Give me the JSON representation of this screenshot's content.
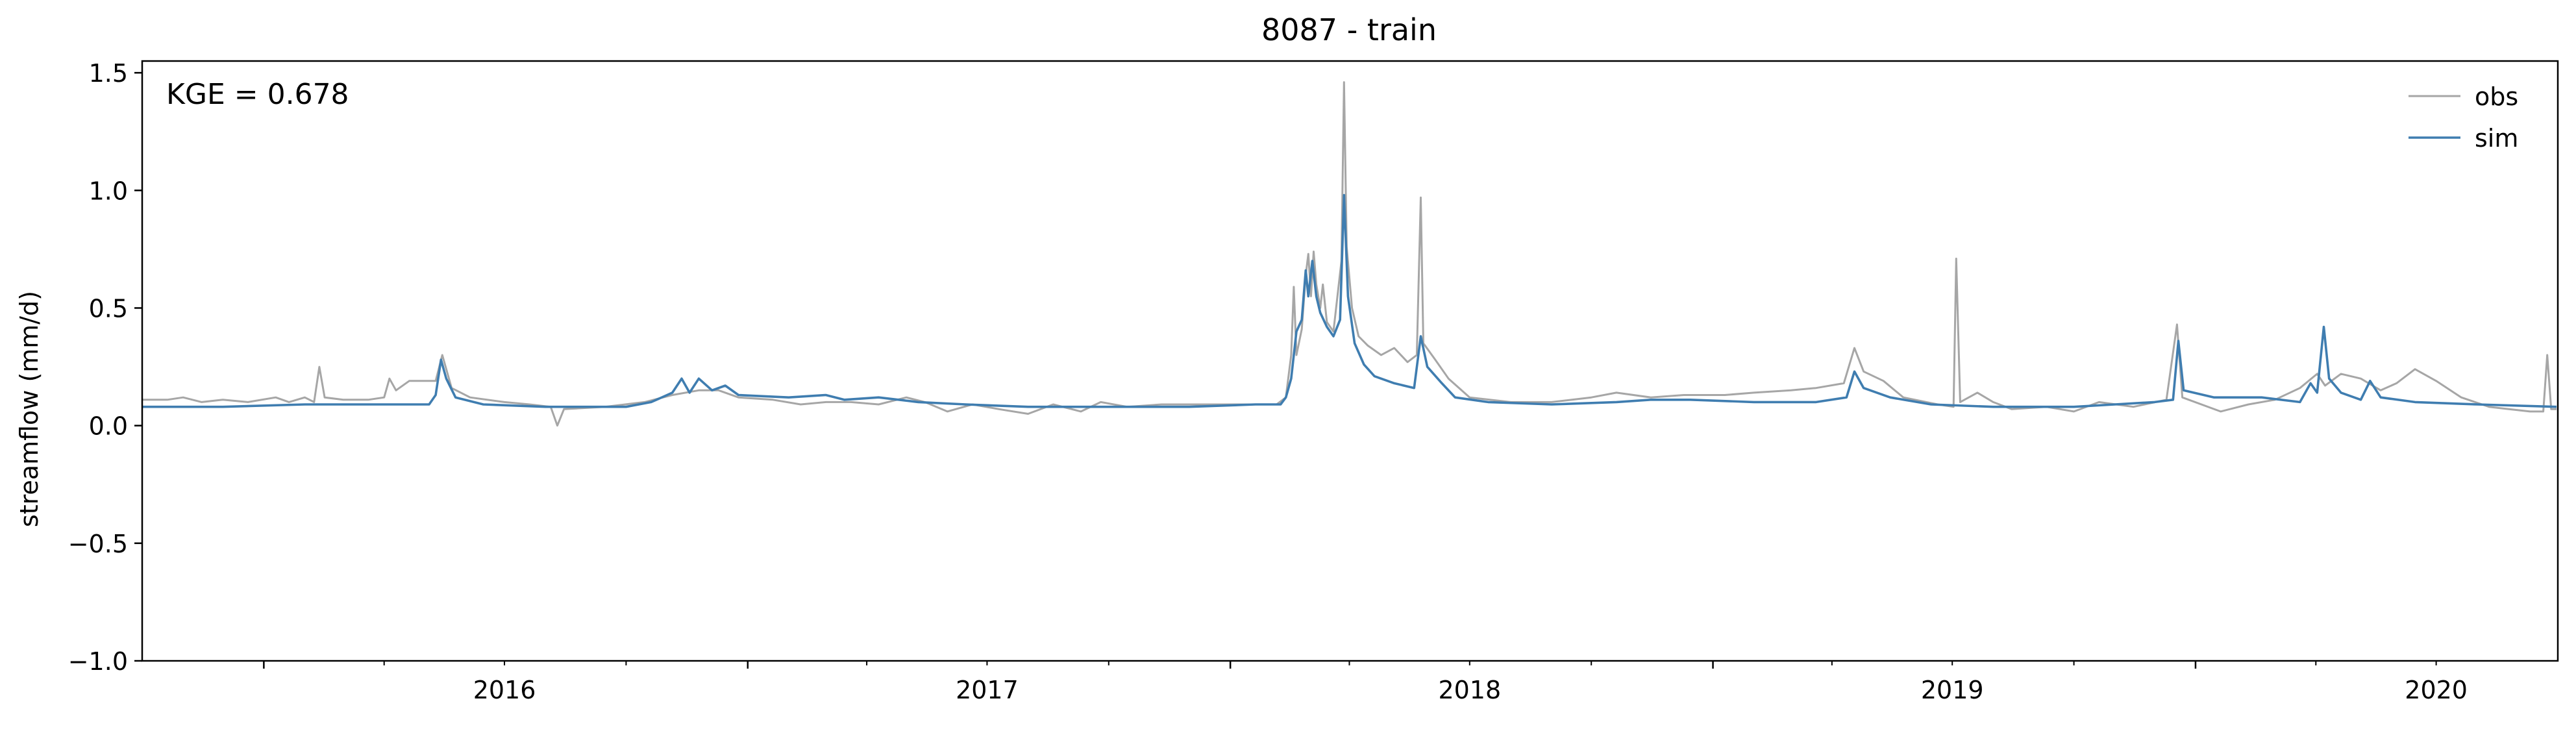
{
  "chart_data": {
    "type": "line",
    "title": "8087 - train",
    "xlabel": "",
    "ylabel": "streamflow (mm/d)",
    "annotation": "KGE = 0.678",
    "xlim": [
      "2015-10-01",
      "2020-09-30"
    ],
    "ylim": [
      -1.0,
      1.55
    ],
    "yticks": [
      -1.0,
      -0.5,
      0.0,
      0.5,
      1.0,
      1.5
    ],
    "ytick_labels": [
      "−1.0",
      "−0.5",
      "0.0",
      "0.5",
      "1.0",
      "1.5"
    ],
    "xticks": [
      "2016-01-01",
      "2017-01-01",
      "2018-01-01",
      "2019-01-01",
      "2020-01-01"
    ],
    "xtick_labels": [
      "2016",
      "2017",
      "2018",
      "2019",
      "2020"
    ],
    "legend_position": "top-right",
    "grid": false,
    "series": [
      {
        "name": "obs",
        "color": "#a6a6a6",
        "points": [
          [
            "2015-10-01",
            0.11
          ],
          [
            "2015-10-20",
            0.11
          ],
          [
            "2015-11-01",
            0.12
          ],
          [
            "2015-11-15",
            0.1
          ],
          [
            "2015-12-01",
            0.11
          ],
          [
            "2015-12-20",
            0.1
          ],
          [
            "2016-01-10",
            0.12
          ],
          [
            "2016-01-20",
            0.1
          ],
          [
            "2016-02-01",
            0.12
          ],
          [
            "2016-02-08",
            0.1
          ],
          [
            "2016-02-12",
            0.25
          ],
          [
            "2016-02-16",
            0.12
          ],
          [
            "2016-03-01",
            0.11
          ],
          [
            "2016-03-20",
            0.11
          ],
          [
            "2016-04-01",
            0.12
          ],
          [
            "2016-04-05",
            0.2
          ],
          [
            "2016-04-10",
            0.15
          ],
          [
            "2016-04-20",
            0.19
          ],
          [
            "2016-05-10",
            0.19
          ],
          [
            "2016-05-15",
            0.3
          ],
          [
            "2016-05-22",
            0.16
          ],
          [
            "2016-06-05",
            0.12
          ],
          [
            "2016-07-01",
            0.1
          ],
          [
            "2016-07-20",
            0.09
          ],
          [
            "2016-08-05",
            0.08
          ],
          [
            "2016-08-10",
            0.0
          ],
          [
            "2016-08-15",
            0.07
          ],
          [
            "2016-09-15",
            0.08
          ],
          [
            "2016-10-15",
            0.1
          ],
          [
            "2016-11-05",
            0.13
          ],
          [
            "2016-11-25",
            0.15
          ],
          [
            "2016-12-10",
            0.15
          ],
          [
            "2016-12-25",
            0.12
          ],
          [
            "2017-01-20",
            0.11
          ],
          [
            "2017-02-10",
            0.09
          ],
          [
            "2017-03-01",
            0.1
          ],
          [
            "2017-03-20",
            0.1
          ],
          [
            "2017-04-10",
            0.09
          ],
          [
            "2017-05-01",
            0.12
          ],
          [
            "2017-05-15",
            0.1
          ],
          [
            "2017-06-01",
            0.06
          ],
          [
            "2017-06-20",
            0.09
          ],
          [
            "2017-07-10",
            0.07
          ],
          [
            "2017-08-01",
            0.05
          ],
          [
            "2017-08-20",
            0.09
          ],
          [
            "2017-09-10",
            0.06
          ],
          [
            "2017-09-25",
            0.1
          ],
          [
            "2017-10-15",
            0.08
          ],
          [
            "2017-11-10",
            0.09
          ],
          [
            "2017-12-10",
            0.09
          ],
          [
            "2018-01-10",
            0.09
          ],
          [
            "2018-01-25",
            0.09
          ],
          [
            "2018-02-05",
            0.09
          ],
          [
            "2018-02-12",
            0.12
          ],
          [
            "2018-02-16",
            0.3
          ],
          [
            "2018-02-18",
            0.59
          ],
          [
            "2018-02-20",
            0.3
          ],
          [
            "2018-02-24",
            0.41
          ],
          [
            "2018-02-27",
            0.64
          ],
          [
            "2018-03-01",
            0.73
          ],
          [
            "2018-03-03",
            0.55
          ],
          [
            "2018-03-05",
            0.74
          ],
          [
            "2018-03-07",
            0.6
          ],
          [
            "2018-03-10",
            0.5
          ],
          [
            "2018-03-12",
            0.6
          ],
          [
            "2018-03-15",
            0.44
          ],
          [
            "2018-03-20",
            0.4
          ],
          [
            "2018-03-26",
            0.7
          ],
          [
            "2018-03-28",
            1.46
          ],
          [
            "2018-03-30",
            0.76
          ],
          [
            "2018-04-03",
            0.5
          ],
          [
            "2018-04-08",
            0.38
          ],
          [
            "2018-04-15",
            0.34
          ],
          [
            "2018-04-25",
            0.3
          ],
          [
            "2018-05-05",
            0.33
          ],
          [
            "2018-05-15",
            0.27
          ],
          [
            "2018-05-22",
            0.3
          ],
          [
            "2018-05-25",
            0.97
          ],
          [
            "2018-05-27",
            0.35
          ],
          [
            "2018-06-05",
            0.28
          ],
          [
            "2018-06-15",
            0.2
          ],
          [
            "2018-07-01",
            0.12
          ],
          [
            "2018-08-01",
            0.1
          ],
          [
            "2018-09-01",
            0.1
          ],
          [
            "2018-10-01",
            0.12
          ],
          [
            "2018-10-20",
            0.14
          ],
          [
            "2018-11-15",
            0.12
          ],
          [
            "2018-12-10",
            0.13
          ],
          [
            "2019-01-10",
            0.13
          ],
          [
            "2019-02-01",
            0.14
          ],
          [
            "2019-03-01",
            0.15
          ],
          [
            "2019-03-20",
            0.16
          ],
          [
            "2019-04-10",
            0.18
          ],
          [
            "2019-04-18",
            0.33
          ],
          [
            "2019-04-25",
            0.23
          ],
          [
            "2019-05-10",
            0.19
          ],
          [
            "2019-05-25",
            0.12
          ],
          [
            "2019-06-20",
            0.09
          ],
          [
            "2019-07-02",
            0.08
          ],
          [
            "2019-07-04",
            0.71
          ],
          [
            "2019-07-07",
            0.1
          ],
          [
            "2019-07-20",
            0.14
          ],
          [
            "2019-08-01",
            0.1
          ],
          [
            "2019-08-15",
            0.07
          ],
          [
            "2019-09-10",
            0.08
          ],
          [
            "2019-10-01",
            0.06
          ],
          [
            "2019-10-20",
            0.1
          ],
          [
            "2019-11-15",
            0.08
          ],
          [
            "2019-12-10",
            0.11
          ],
          [
            "2019-12-18",
            0.43
          ],
          [
            "2019-12-22",
            0.12
          ],
          [
            "2020-01-20",
            0.06
          ],
          [
            "2020-02-10",
            0.09
          ],
          [
            "2020-03-01",
            0.11
          ],
          [
            "2020-03-20",
            0.16
          ],
          [
            "2020-04-02",
            0.22
          ],
          [
            "2020-04-08",
            0.17
          ],
          [
            "2020-04-20",
            0.22
          ],
          [
            "2020-05-05",
            0.2
          ],
          [
            "2020-05-20",
            0.15
          ],
          [
            "2020-06-01",
            0.18
          ],
          [
            "2020-06-15",
            0.24
          ],
          [
            "2020-07-01",
            0.19
          ],
          [
            "2020-07-20",
            0.12
          ],
          [
            "2020-08-10",
            0.08
          ],
          [
            "2020-08-25",
            0.07
          ],
          [
            "2020-09-10",
            0.06
          ],
          [
            "2020-09-20",
            0.06
          ],
          [
            "2020-09-23",
            0.3
          ],
          [
            "2020-09-26",
            0.07
          ],
          [
            "2020-09-30",
            0.07
          ]
        ]
      },
      {
        "name": "sim",
        "color": "#3f7db0",
        "points": [
          [
            "2015-10-01",
            0.08
          ],
          [
            "2015-12-01",
            0.08
          ],
          [
            "2016-02-01",
            0.09
          ],
          [
            "2016-04-01",
            0.09
          ],
          [
            "2016-05-05",
            0.09
          ],
          [
            "2016-05-10",
            0.13
          ],
          [
            "2016-05-14",
            0.28
          ],
          [
            "2016-05-18",
            0.2
          ],
          [
            "2016-05-25",
            0.12
          ],
          [
            "2016-06-15",
            0.09
          ],
          [
            "2016-08-01",
            0.08
          ],
          [
            "2016-10-01",
            0.08
          ],
          [
            "2016-10-20",
            0.1
          ],
          [
            "2016-11-05",
            0.14
          ],
          [
            "2016-11-12",
            0.2
          ],
          [
            "2016-11-18",
            0.14
          ],
          [
            "2016-11-25",
            0.2
          ],
          [
            "2016-12-05",
            0.15
          ],
          [
            "2016-12-15",
            0.17
          ],
          [
            "2016-12-25",
            0.13
          ],
          [
            "2017-02-01",
            0.12
          ],
          [
            "2017-03-01",
            0.13
          ],
          [
            "2017-03-15",
            0.11
          ],
          [
            "2017-04-10",
            0.12
          ],
          [
            "2017-05-10",
            0.1
          ],
          [
            "2017-06-15",
            0.09
          ],
          [
            "2017-08-01",
            0.08
          ],
          [
            "2017-10-01",
            0.08
          ],
          [
            "2017-12-01",
            0.08
          ],
          [
            "2018-01-20",
            0.09
          ],
          [
            "2018-02-08",
            0.09
          ],
          [
            "2018-02-12",
            0.12
          ],
          [
            "2018-02-16",
            0.2
          ],
          [
            "2018-02-20",
            0.4
          ],
          [
            "2018-02-24",
            0.45
          ],
          [
            "2018-02-27",
            0.66
          ],
          [
            "2018-03-01",
            0.55
          ],
          [
            "2018-03-04",
            0.7
          ],
          [
            "2018-03-07",
            0.55
          ],
          [
            "2018-03-10",
            0.48
          ],
          [
            "2018-03-15",
            0.42
          ],
          [
            "2018-03-20",
            0.38
          ],
          [
            "2018-03-25",
            0.45
          ],
          [
            "2018-03-28",
            0.98
          ],
          [
            "2018-03-31",
            0.55
          ],
          [
            "2018-04-05",
            0.35
          ],
          [
            "2018-04-12",
            0.26
          ],
          [
            "2018-04-20",
            0.21
          ],
          [
            "2018-05-05",
            0.18
          ],
          [
            "2018-05-20",
            0.16
          ],
          [
            "2018-05-25",
            0.38
          ],
          [
            "2018-05-30",
            0.25
          ],
          [
            "2018-06-10",
            0.18
          ],
          [
            "2018-06-20",
            0.12
          ],
          [
            "2018-07-15",
            0.1
          ],
          [
            "2018-09-01",
            0.09
          ],
          [
            "2018-10-20",
            0.1
          ],
          [
            "2018-11-15",
            0.11
          ],
          [
            "2018-12-15",
            0.11
          ],
          [
            "2019-02-01",
            0.1
          ],
          [
            "2019-03-20",
            0.1
          ],
          [
            "2019-04-12",
            0.12
          ],
          [
            "2019-04-18",
            0.23
          ],
          [
            "2019-04-25",
            0.16
          ],
          [
            "2019-05-15",
            0.12
          ],
          [
            "2019-06-15",
            0.09
          ],
          [
            "2019-08-01",
            0.08
          ],
          [
            "2019-10-01",
            0.08
          ],
          [
            "2019-11-01",
            0.09
          ],
          [
            "2019-12-01",
            0.1
          ],
          [
            "2019-12-15",
            0.11
          ],
          [
            "2019-12-19",
            0.36
          ],
          [
            "2019-12-23",
            0.15
          ],
          [
            "2020-01-15",
            0.12
          ],
          [
            "2020-02-20",
            0.12
          ],
          [
            "2020-03-20",
            0.1
          ],
          [
            "2020-03-28",
            0.18
          ],
          [
            "2020-04-02",
            0.14
          ],
          [
            "2020-04-07",
            0.42
          ],
          [
            "2020-04-11",
            0.2
          ],
          [
            "2020-04-20",
            0.14
          ],
          [
            "2020-05-05",
            0.11
          ],
          [
            "2020-05-12",
            0.19
          ],
          [
            "2020-05-20",
            0.12
          ],
          [
            "2020-06-15",
            0.1
          ],
          [
            "2020-08-01",
            0.09
          ],
          [
            "2020-09-30",
            0.08
          ]
        ]
      }
    ]
  }
}
